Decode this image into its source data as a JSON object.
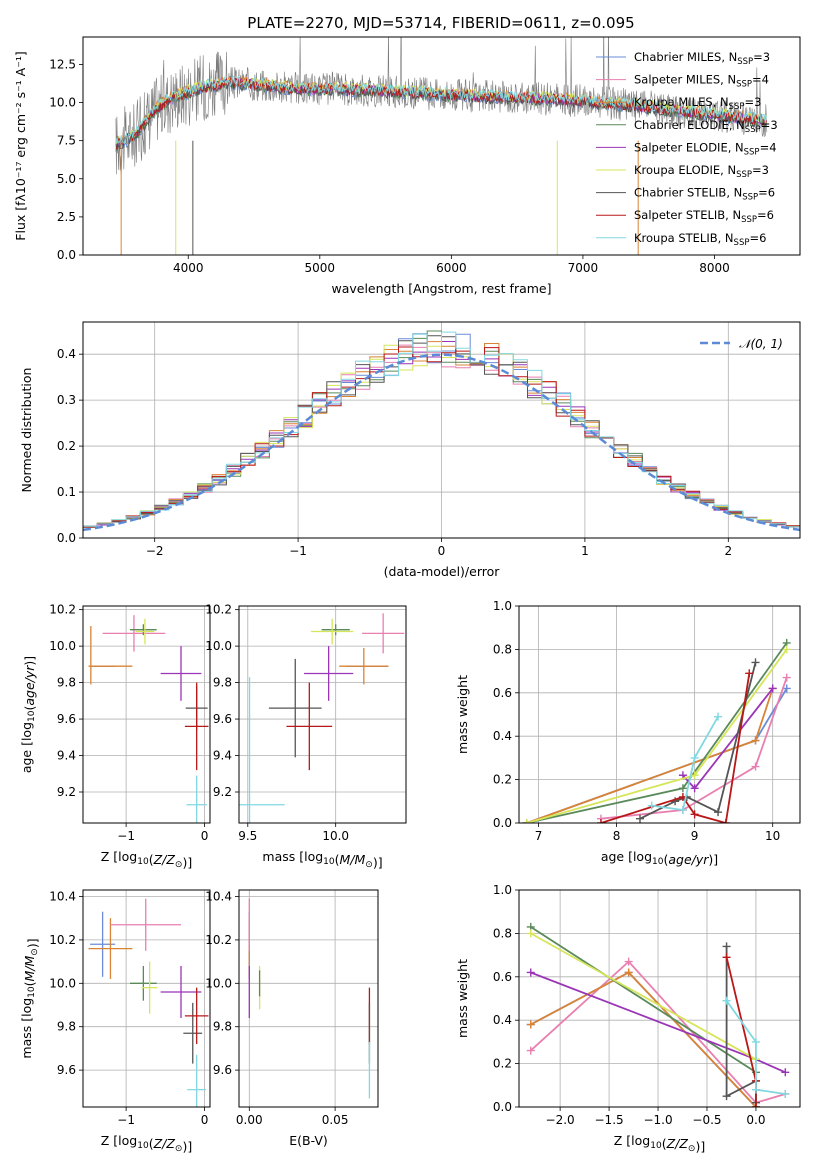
{
  "title": "PLATE=2270, MJD=53714, FIBERID=0611, z=0.095",
  "chart_data": [
    {
      "id": "spectrum",
      "type": "line",
      "xlabel": "wavelength [Angstrom, rest frame]",
      "ylabel": "Flux [fλ10⁻¹⁷ erg cm⁻² s⁻¹ A⁻¹]",
      "xlim": [
        3200,
        8650
      ],
      "ylim": [
        0,
        14.3
      ],
      "xticks": [
        "4000",
        "5000",
        "6000",
        "7000",
        "8000"
      ],
      "yticks": [
        "0.0",
        "2.5",
        "5.0",
        "7.5",
        "10.0",
        "12.5"
      ],
      "grid": false,
      "legend_position": "right",
      "legend": [
        {
          "base": "Chabrier MILES, N",
          "sub": "SSP",
          "tail": "=3",
          "color": "#6a8cd8"
        },
        {
          "base": "Salpeter MILES, N",
          "sub": "SSP",
          "tail": "=4",
          "color": "#e87fb0"
        },
        {
          "base": "Kroupa MILES, N",
          "sub": "SSP",
          "tail": "=3",
          "color": "#d98435"
        },
        {
          "base": "Chabrier ELODIE, N",
          "sub": "SSP",
          "tail": "=3",
          "color": "#5a8a5a"
        },
        {
          "base": "Salpeter ELODIE, N",
          "sub": "SSP",
          "tail": "=4",
          "color": "#9b35b8"
        },
        {
          "base": "Kroupa ELODIE, N",
          "sub": "SSP",
          "tail": "=3",
          "color": "#d6e55a"
        },
        {
          "base": "Chabrier STELIB, N",
          "sub": "SSP",
          "tail": "=6",
          "color": "#555555"
        },
        {
          "base": "Salpeter STELIB, N",
          "sub": "SSP",
          "tail": "=6",
          "color": "#b81818"
        },
        {
          "base": "Kroupa STELIB, N",
          "sub": "SSP",
          "tail": "=6",
          "color": "#80d8e0"
        }
      ],
      "continuum": {
        "x": [
          3450,
          3600,
          3750,
          3900,
          4000,
          4100,
          4300,
          4500,
          4700,
          4900,
          5100,
          5400,
          5800,
          6200,
          6600,
          7000,
          7400,
          7800,
          8200,
          8400
        ],
        "y": [
          7.2,
          7.9,
          9.6,
          10.4,
          10.7,
          11.0,
          11.3,
          11.2,
          11.0,
          10.9,
          10.9,
          10.8,
          10.6,
          10.4,
          10.3,
          10.1,
          9.8,
          9.4,
          9.0,
          8.8
        ]
      }
    },
    {
      "id": "residuals",
      "type": "step",
      "xlabel": "(data-model)/error",
      "ylabel": "Normed distribution",
      "xlim": [
        -2.5,
        2.5
      ],
      "ylim": [
        0,
        0.47
      ],
      "xticks": [
        "−2",
        "−1",
        "0",
        "1",
        "2"
      ],
      "yticks": [
        "0.0",
        "0.1",
        "0.2",
        "0.3",
        "0.4"
      ],
      "grid": true,
      "legend_position": "top-right",
      "legend": "𝒩(0, 1)",
      "gaussian": {
        "mu": 0,
        "sigma": 1,
        "color": "#5b8bd6"
      },
      "bin_width": 0.1
    },
    {
      "id": "age-vs-Z",
      "type": "errorbar",
      "xlabel": "Z [log10(Z/Z⊙)]",
      "ylabel": "age  [log10(age/yr)]",
      "xlim": [
        -1.55,
        0.07
      ],
      "ylim": [
        9.03,
        10.22
      ],
      "xticks": [
        "−1",
        "0"
      ],
      "yticks": [
        "9.2",
        "9.4",
        "9.6",
        "9.8",
        "10.0",
        "10.2"
      ],
      "points": [
        {
          "x": -1.3,
          "y": 9.89,
          "xe": 0.16,
          "ye": 0.0,
          "c": "#6a8cd8"
        },
        {
          "x": -1.2,
          "y": 9.89,
          "xe": 0.28,
          "ye": 0.0,
          "c": "#d98435"
        },
        {
          "x": -1.45,
          "y": 9.95,
          "xe": 0.0,
          "ye": 0.16,
          "c": "#d98435"
        },
        {
          "x": -0.9,
          "y": 10.07,
          "xe": 0.4,
          "ye": 0.1,
          "c": "#e87fb0"
        },
        {
          "x": -0.78,
          "y": 10.09,
          "xe": 0.17,
          "ye": 0.03,
          "c": "#5a8a5a"
        },
        {
          "x": -0.76,
          "y": 10.08,
          "xe": 0.12,
          "ye": 0.07,
          "c": "#d6e55a"
        },
        {
          "x": -0.3,
          "y": 9.85,
          "xe": 0.26,
          "ye": 0.15,
          "c": "#9b35b8"
        },
        {
          "x": -0.1,
          "y": 9.66,
          "xe": 0.14,
          "ye": 0.12,
          "c": "#555555"
        },
        {
          "x": -0.1,
          "y": 9.56,
          "xe": 0.15,
          "ye": 0.24,
          "c": "#b81818"
        },
        {
          "x": -0.1,
          "y": 9.13,
          "xe": 0.13,
          "ye": 0.16,
          "c": "#80d8e0"
        }
      ]
    },
    {
      "id": "age-vs-mass",
      "type": "errorbar",
      "xlabel": "mass [log10(M/M⊙)]",
      "ylabel": "",
      "xlim": [
        9.45,
        10.4
      ],
      "ylim": [
        9.03,
        10.22
      ],
      "xticks": [
        "9.5",
        "10.0"
      ],
      "yticks": [
        "9.2",
        "9.4",
        "9.6",
        "9.8",
        "10.0",
        "10.2"
      ],
      "points": [
        {
          "x": 10.18,
          "y": 9.89,
          "xe": 0.12,
          "ye": 0.0,
          "c": "#6a8cd8"
        },
        {
          "x": 10.16,
          "y": 9.89,
          "xe": 0.14,
          "ye": 0.1,
          "c": "#d98435"
        },
        {
          "x": 10.27,
          "y": 10.07,
          "xe": 0.12,
          "ye": 0.11,
          "c": "#e87fb0"
        },
        {
          "x": 10.0,
          "y": 10.09,
          "xe": 0.08,
          "ye": 0.03,
          "c": "#5a8a5a"
        },
        {
          "x": 9.98,
          "y": 10.08,
          "xe": 0.12,
          "ye": 0.07,
          "c": "#d6e55a"
        },
        {
          "x": 9.96,
          "y": 9.85,
          "xe": 0.14,
          "ye": 0.15,
          "c": "#9b35b8"
        },
        {
          "x": 9.77,
          "y": 9.66,
          "xe": 0.15,
          "ye": 0.27,
          "c": "#555555"
        },
        {
          "x": 9.85,
          "y": 9.56,
          "xe": 0.13,
          "ye": 0.24,
          "c": "#b81818"
        },
        {
          "x": 9.51,
          "y": 9.13,
          "xe": 0.2,
          "ye": 0.7,
          "c": "#80d8e0"
        }
      ]
    },
    {
      "id": "weight-vs-age",
      "type": "line",
      "xlabel": "age  [log10(age/yr)]",
      "ylabel": "mass weight",
      "xlim": [
        6.75,
        10.35
      ],
      "ylim": [
        0,
        1.0
      ],
      "xticks": [
        "7",
        "8",
        "9",
        "10"
      ],
      "yticks": [
        "0.0",
        "0.2",
        "0.4",
        "0.6",
        "0.8",
        "1.0"
      ],
      "grid": true,
      "series": [
        {
          "c": "#6a8cd8",
          "x": [
            6.85,
            9.78,
            10.18
          ],
          "y": [
            0.0,
            0.38,
            0.62
          ]
        },
        {
          "c": "#e87fb0",
          "x": [
            7.8,
            8.85,
            9.78,
            10.18
          ],
          "y": [
            0.02,
            0.06,
            0.26,
            0.67
          ]
        },
        {
          "c": "#d98435",
          "x": [
            6.85,
            9.78,
            10.0
          ],
          "y": [
            0.0,
            0.38,
            0.62
          ]
        },
        {
          "c": "#5a8a5a",
          "x": [
            6.85,
            8.85,
            10.18
          ],
          "y": [
            0.0,
            0.16,
            0.83
          ]
        },
        {
          "c": "#9b35b8",
          "x": [
            8.85,
            9.0,
            10.0
          ],
          "y": [
            0.22,
            0.16,
            0.62
          ]
        },
        {
          "c": "#d6e55a",
          "x": [
            6.85,
            9.0,
            10.18
          ],
          "y": [
            0.0,
            0.22,
            0.8
          ]
        },
        {
          "c": "#555555",
          "x": [
            8.3,
            8.75,
            8.9,
            9.3,
            9.78
          ],
          "y": [
            0.02,
            0.1,
            0.12,
            0.05,
            0.74
          ]
        },
        {
          "c": "#b81818",
          "x": [
            7.8,
            8.85,
            9.0,
            9.4,
            9.7
          ],
          "y": [
            0.0,
            0.12,
            0.04,
            0.0,
            0.69
          ]
        },
        {
          "c": "#80d8e0",
          "x": [
            8.45,
            8.85,
            9.0,
            9.3
          ],
          "y": [
            0.08,
            0.06,
            0.3,
            0.49
          ]
        }
      ]
    },
    {
      "id": "mass-vs-Z",
      "type": "errorbar",
      "xlabel": "Z [log10(Z/Z⊙)]",
      "ylabel": "mass [log10(M/M⊙)]",
      "xlim": [
        -1.55,
        0.07
      ],
      "ylim": [
        9.43,
        10.43
      ],
      "xticks": [
        "−1",
        "0"
      ],
      "yticks": [
        "9.6",
        "9.8",
        "10.0",
        "10.2",
        "10.4"
      ],
      "points": [
        {
          "x": -1.3,
          "y": 10.18,
          "xe": 0.16,
          "ye": 0.15,
          "c": "#6a8cd8"
        },
        {
          "x": -1.2,
          "y": 10.16,
          "xe": 0.28,
          "ye": 0.14,
          "c": "#d98435"
        },
        {
          "x": -0.75,
          "y": 10.27,
          "xe": 0.45,
          "ye": 0.12,
          "c": "#e87fb0"
        },
        {
          "x": -0.78,
          "y": 10.0,
          "xe": 0.17,
          "ye": 0.08,
          "c": "#5a8a5a"
        },
        {
          "x": -0.7,
          "y": 9.98,
          "xe": 0.1,
          "ye": 0.12,
          "c": "#d6e55a"
        },
        {
          "x": -0.3,
          "y": 9.96,
          "xe": 0.26,
          "ye": 0.12,
          "c": "#9b35b8"
        },
        {
          "x": -0.15,
          "y": 9.77,
          "xe": 0.12,
          "ye": 0.14,
          "c": "#555555"
        },
        {
          "x": -0.1,
          "y": 9.85,
          "xe": 0.15,
          "ye": 0.13,
          "c": "#b81818"
        },
        {
          "x": -0.1,
          "y": 9.51,
          "xe": 0.12,
          "ye": 0.16,
          "c": "#80d8e0"
        }
      ]
    },
    {
      "id": "mass-vs-ebv",
      "type": "errorbar",
      "xlabel": "E(B-V)",
      "ylabel": "",
      "xlim": [
        -0.006,
        0.075
      ],
      "ylim": [
        9.43,
        10.43
      ],
      "xticks": [
        "0.00",
        "0.05"
      ],
      "yticks": [
        "9.6",
        "9.8",
        "10.0",
        "10.2",
        "10.4"
      ],
      "points": [
        {
          "x": 0.0,
          "y": 10.18,
          "xe": 0.0,
          "ye": 0.15,
          "c": "#6a8cd8"
        },
        {
          "x": 0.0,
          "y": 10.16,
          "xe": 0.0,
          "ye": 0.14,
          "c": "#d98435"
        },
        {
          "x": 0.0,
          "y": 10.27,
          "xe": 0.0,
          "ye": 0.12,
          "c": "#e87fb0"
        },
        {
          "x": 0.0,
          "y": 9.96,
          "xe": 0.0,
          "ye": 0.12,
          "c": "#9b35b8"
        },
        {
          "x": 0.006,
          "y": 9.98,
          "xe": 0.0,
          "ye": 0.1,
          "c": "#d6e55a"
        },
        {
          "x": 0.006,
          "y": 10.0,
          "xe": 0.0,
          "ye": 0.06,
          "c": "#5a8a5a"
        },
        {
          "x": 0.07,
          "y": 9.85,
          "xe": 0.0,
          "ye": 0.13,
          "c": "#b81818"
        },
        {
          "x": 0.07,
          "y": 9.77,
          "xe": 0.0,
          "ye": 0.14,
          "c": "#555555"
        },
        {
          "x": 0.07,
          "y": 9.6,
          "xe": 0.0,
          "ye": 0.13,
          "c": "#80d8e0"
        }
      ]
    },
    {
      "id": "weight-vs-Z",
      "type": "line",
      "xlabel": "Z [log10(Z/Z⊙)]",
      "ylabel": "mass weight",
      "xlim": [
        -2.42,
        0.45
      ],
      "ylim": [
        0,
        1.0
      ],
      "xticks": [
        "−2.0",
        "−1.5",
        "−1.0",
        "−0.5",
        "0.0"
      ],
      "yticks": [
        "0.0",
        "0.2",
        "0.4",
        "0.6",
        "0.8",
        "1.0"
      ],
      "grid": true,
      "series": [
        {
          "c": "#6a8cd8",
          "x": [
            -2.3,
            -1.3,
            0.0
          ],
          "y": [
            0.38,
            0.62,
            0.0
          ]
        },
        {
          "c": "#e87fb0",
          "x": [
            -2.3,
            -1.3,
            0.0,
            0.3
          ],
          "y": [
            0.26,
            0.67,
            0.02,
            0.06
          ]
        },
        {
          "c": "#d98435",
          "x": [
            -2.3,
            -1.3,
            0.0
          ],
          "y": [
            0.38,
            0.62,
            0.0
          ]
        },
        {
          "c": "#5a8a5a",
          "x": [
            -2.3,
            0.0
          ],
          "y": [
            0.83,
            0.16
          ]
        },
        {
          "c": "#9b35b8",
          "x": [
            -2.3,
            0.0,
            0.3
          ],
          "y": [
            0.62,
            0.22,
            0.16
          ]
        },
        {
          "c": "#d6e55a",
          "x": [
            -2.3,
            0.0
          ],
          "y": [
            0.8,
            0.22
          ]
        },
        {
          "c": "#555555",
          "x": [
            -0.3,
            -0.3,
            0.0,
            0.0
          ],
          "y": [
            0.74,
            0.05,
            0.12,
            0.02
          ]
        },
        {
          "c": "#b81818",
          "x": [
            -0.3,
            0.0,
            0.0
          ],
          "y": [
            0.69,
            0.12,
            0.0
          ]
        },
        {
          "c": "#80d8e0",
          "x": [
            -0.3,
            0.0,
            0.0,
            0.3
          ],
          "y": [
            0.49,
            0.3,
            0.08,
            0.06
          ]
        }
      ]
    }
  ]
}
